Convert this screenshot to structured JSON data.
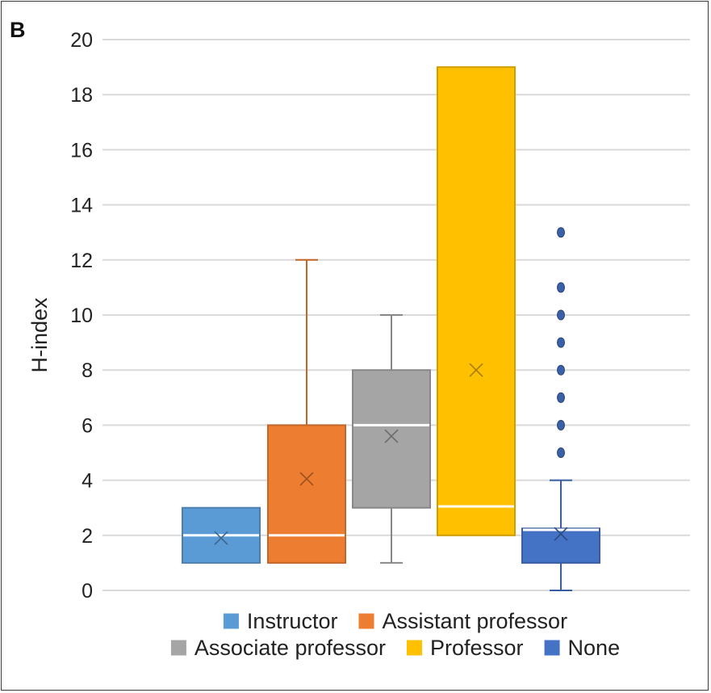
{
  "chart_data": {
    "type": "box",
    "panel_label": "B",
    "ylabel": "H-index",
    "ylim": [
      0,
      20
    ],
    "yticks": [
      0,
      2,
      4,
      6,
      8,
      10,
      12,
      14,
      16,
      18,
      20
    ],
    "grid": true,
    "legend_position": "bottom",
    "series": [
      {
        "name": "Instructor",
        "color": "#5B9BD5",
        "whisker_low": 1,
        "q1": 1,
        "median": 2,
        "q3": 3,
        "whisker_high": 3,
        "mean": 1.9,
        "outliers": []
      },
      {
        "name": "Assistant professor",
        "color": "#ED7D31",
        "whisker_low": 1,
        "q1": 1,
        "median": 2,
        "q3": 6,
        "whisker_high": 12,
        "mean": 4.05,
        "outliers": []
      },
      {
        "name": "Associate professor",
        "color": "#A5A5A5",
        "whisker_low": 1,
        "q1": 3,
        "median": 6,
        "q3": 8,
        "whisker_high": 10,
        "mean": 5.6,
        "outliers": []
      },
      {
        "name": "Professor",
        "color": "#FFC000",
        "whisker_low": 2,
        "q1": 2,
        "median": 3.05,
        "q3": 19,
        "whisker_high": 19,
        "mean": 8,
        "outliers": []
      },
      {
        "name": "None",
        "color": "#4472C4",
        "whisker_low": 0,
        "q1": 1,
        "median": 2.2,
        "q3": 2.25,
        "whisker_high": 4,
        "mean": 2.05,
        "outliers": [
          5,
          6,
          7,
          8,
          9,
          10,
          11,
          13
        ]
      }
    ]
  }
}
